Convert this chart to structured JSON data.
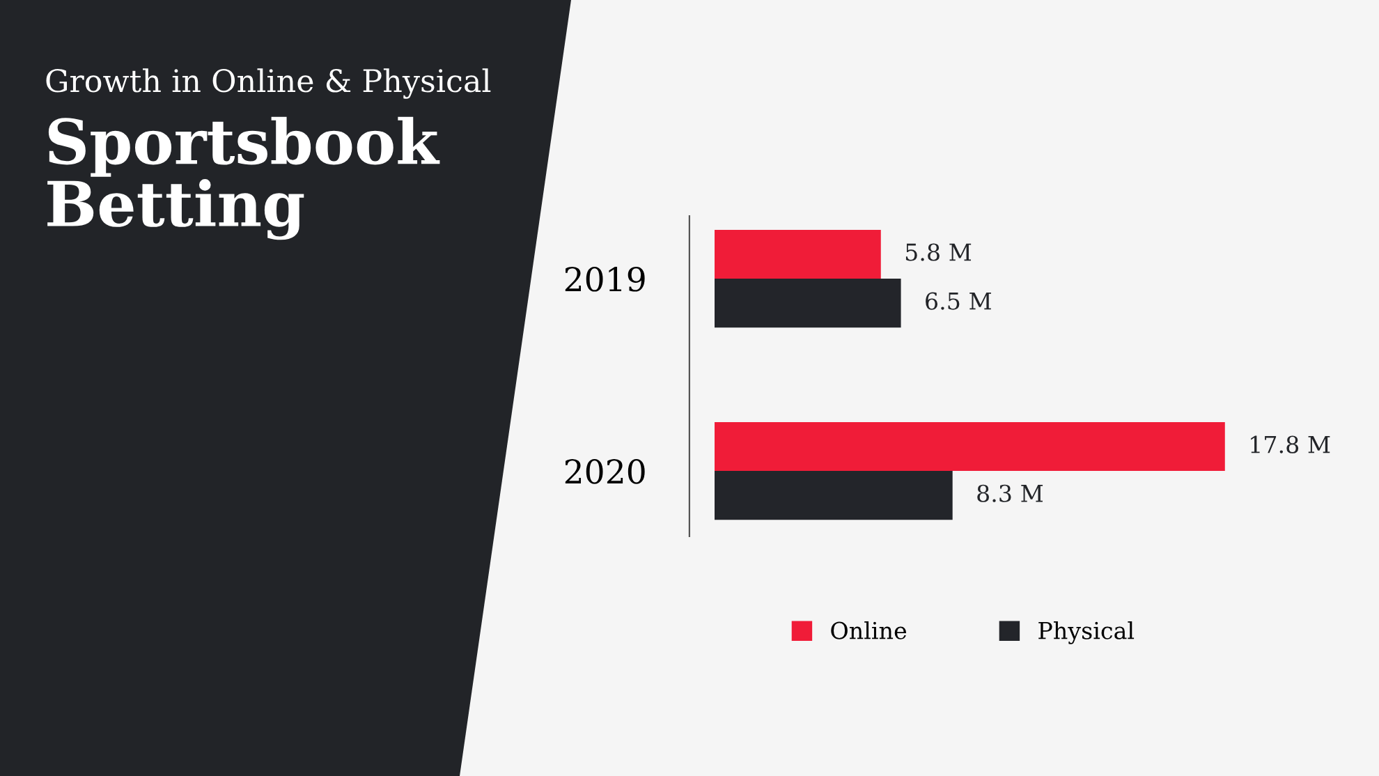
{
  "chart_data": {
    "type": "bar",
    "orientation": "horizontal",
    "title": "Growth in Online & Physical",
    "subtitle": "Sportsbook Betting",
    "categories": [
      "2019",
      "2020"
    ],
    "series": [
      {
        "name": "Online",
        "color": "#f01c38",
        "values": [
          5.8,
          17.8
        ],
        "value_labels": [
          "5.8 M",
          "17.8 M"
        ]
      },
      {
        "name": "Physical",
        "color": "#23252a",
        "values": [
          6.5,
          8.3
        ],
        "value_labels": [
          "6.5 M",
          "8.3 M"
        ]
      }
    ],
    "legend": "bottom",
    "grid": false
  }
}
